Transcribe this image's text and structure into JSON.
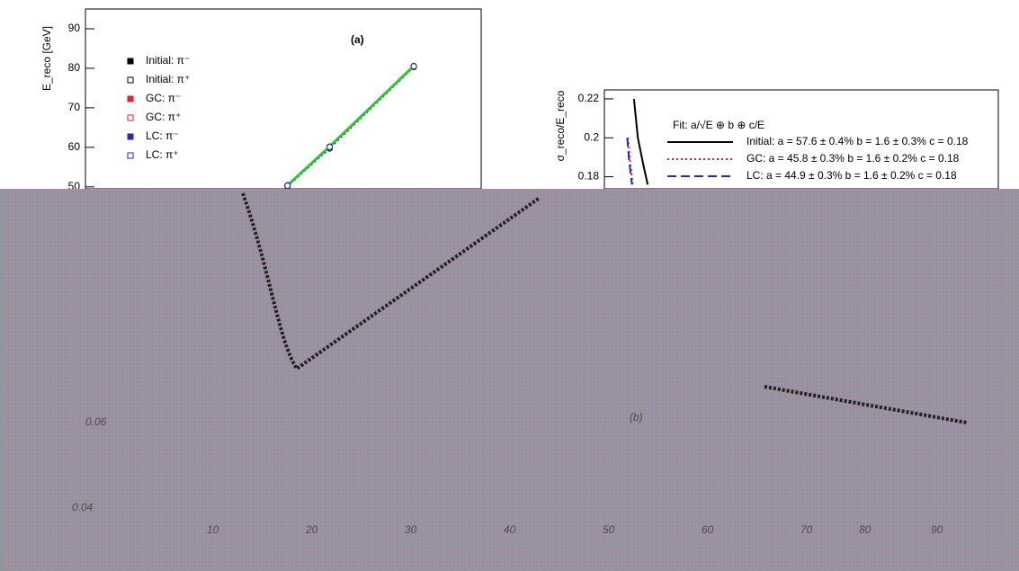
{
  "chart_data": [
    {
      "type": "scatter",
      "ylabel": "E_reco [GeV]",
      "annotation": "(a)",
      "xlim": [
        2,
        96
      ],
      "ylim": [
        49.5,
        95
      ],
      "yticks": [
        50,
        60,
        70,
        80,
        90
      ],
      "series": [
        {
          "name": "Initial: π⁻",
          "color": "#000000",
          "marker": "filled",
          "line": "dotted",
          "x": [
            50,
            60,
            80
          ],
          "values": [
            50.2,
            59.8,
            80.4
          ]
        },
        {
          "name": "Initial: π⁺",
          "color": "#000000",
          "marker": "open",
          "line": "none",
          "x": [
            50,
            60,
            80
          ],
          "values": [
            50.1,
            59.7,
            80.3
          ]
        },
        {
          "name": "GC: π⁻",
          "color": "#e8202a",
          "marker": "filled",
          "line": "none",
          "x": [
            50,
            60,
            80
          ],
          "values": [
            50.3,
            60.1,
            80.5
          ]
        },
        {
          "name": "GC: π⁺",
          "color": "#e8202a",
          "marker": "open",
          "line": "none",
          "x": [
            50,
            60,
            80
          ],
          "values": [
            50.2,
            60.0,
            80.4
          ]
        },
        {
          "name": "LC: π⁻",
          "color": "#2a2aa8",
          "marker": "filled",
          "line": "solid-green",
          "x": [
            50,
            60,
            80
          ],
          "values": [
            50.4,
            60.2,
            80.6
          ]
        },
        {
          "name": "LC: π⁺",
          "color": "#2a2aa8",
          "marker": "open",
          "line": "none",
          "x": [
            50,
            60,
            80
          ],
          "values": [
            50.3,
            60.1,
            80.5
          ]
        }
      ]
    },
    {
      "type": "line",
      "ylabel": "σ_reco/E_reco",
      "legend_title": "Fit: a/√E ⊕ b ⊕ c/E",
      "xlim": [
        0,
        100
      ],
      "ylim": [
        0.1738,
        0.2246
      ],
      "yticks": [
        0.18,
        0.2,
        0.22
      ],
      "series": [
        {
          "name": "Initial: a = 57.6 ± 0.4%  b = 1.6 ± 0.3%  c = 0.18",
          "color": "#000000",
          "dash": "solid",
          "x": [
            7.5,
            8.5,
            10,
            11
          ],
          "values": [
            0.22,
            0.2,
            0.185,
            0.176
          ]
        },
        {
          "name": "GC: a = 45.8 ± 0.3%  b = 1.6 ± 0.2%  c = 0.18",
          "color": "#e8202a",
          "dash": "dotted",
          "x": [
            6,
            6.5,
            7.2
          ],
          "values": [
            0.2,
            0.188,
            0.176
          ]
        },
        {
          "name": "LC: a = 44.9 ± 0.3%  b = 1.6 ± 0.2%  c = 0.18",
          "color": "#2a2aa8",
          "dash": "dashed",
          "x": [
            5.8,
            6.3,
            7
          ],
          "values": [
            0.2,
            0.188,
            0.176
          ]
        }
      ]
    }
  ],
  "overlay_texts": [
    "0.06",
    "0.04",
    "(b)",
    "10",
    "20",
    "30",
    "40",
    "50",
    "60",
    "70",
    "80",
    "90"
  ]
}
